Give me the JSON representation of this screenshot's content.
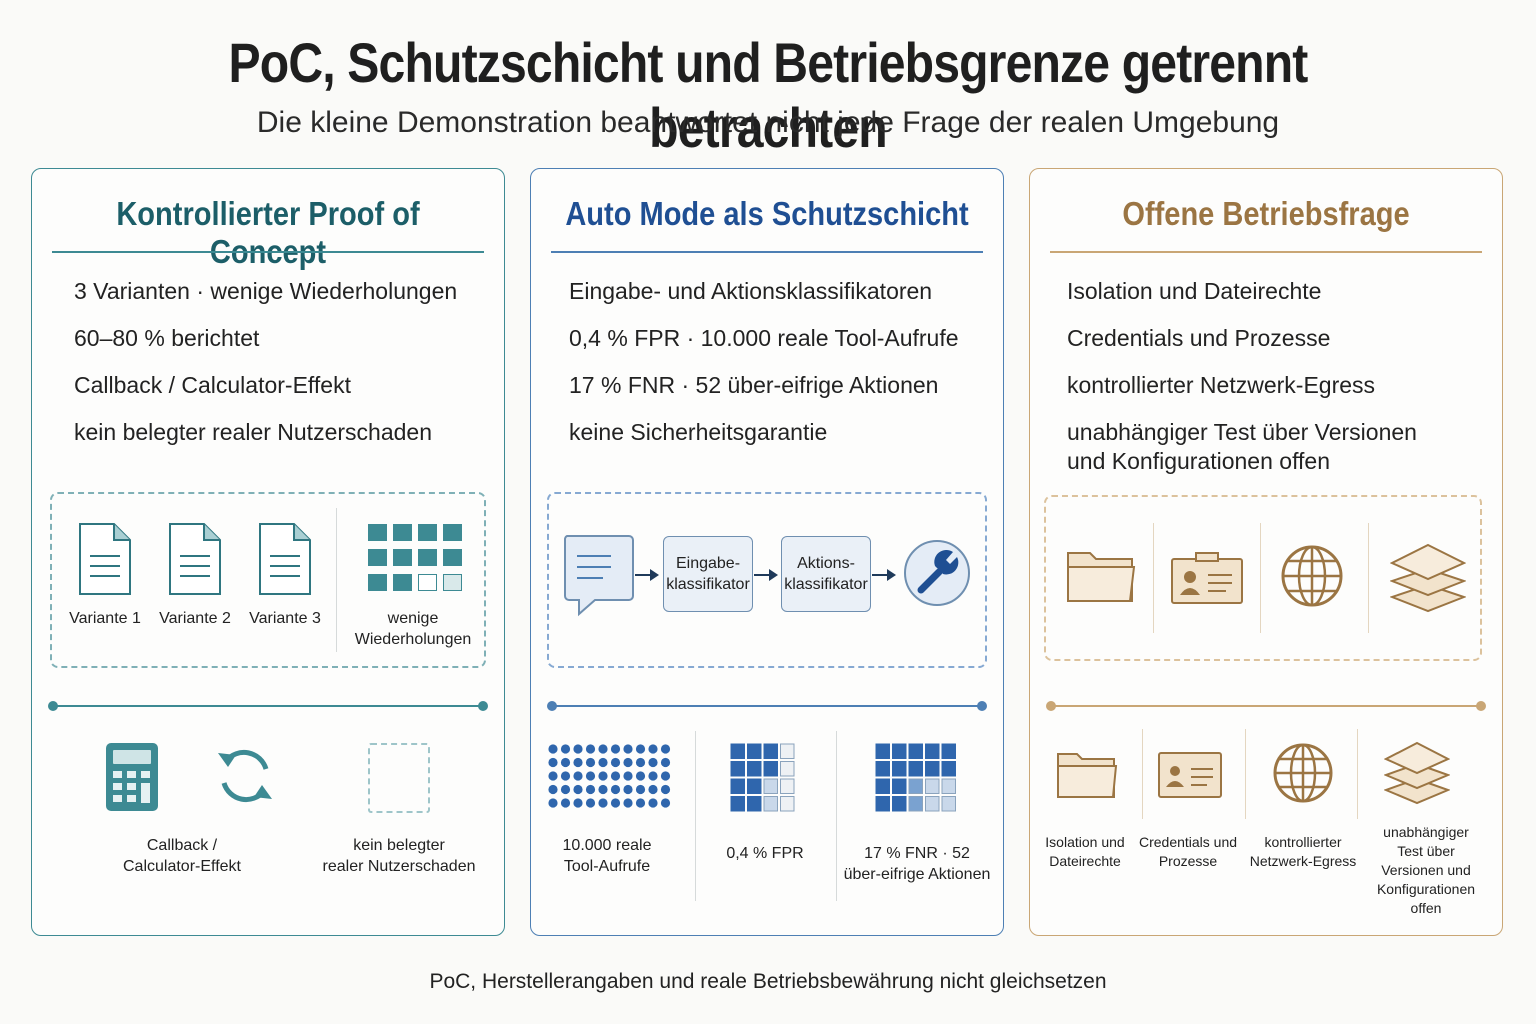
{
  "title": "PoC, Schutzschicht und Betriebsgrenze getrennt betrachten",
  "subtitle": "Die kleine Demonstration beantwortet nicht jede Frage der realen Umgebung",
  "footer": "PoC, Herstellerangaben und reale Betriebsbewährung nicht gleichsetzen",
  "colors": {
    "teal": "#3d8a93",
    "blue": "#4d7fb4",
    "gold": "#c9a675"
  },
  "panel1": {
    "title": "Kontrollierter Proof of Concept",
    "bullets": [
      "3 Varianten · wenige Wiederholungen",
      "60–80 % berichtet",
      "Callback / Calculator-Effekt",
      "kein belegter realer Nutzerschaden"
    ],
    "icons": {
      "variant1": "Variante 1",
      "variant2": "Variante 2",
      "variant3": "Variante 3",
      "repeats_line1": "wenige",
      "repeats_line2": "Wiederholungen"
    },
    "bottom": {
      "callback_line1": "Callback /",
      "callback_line2": "Calculator-Effekt",
      "harm_line1": "kein belegter",
      "harm_line2": "realer Nutzerschaden"
    }
  },
  "panel2": {
    "title": "Auto Mode als Schutzschicht",
    "bullets": [
      "Eingabe- und Aktionsklassifikatoren",
      "0,4 % FPR · 10.000 reale Tool-Aufrufe",
      "17 % FNR · 52 über-eifrige Aktionen",
      "keine Sicherheitsgarantie"
    ],
    "flow": {
      "input_line1": "Eingabe-",
      "input_line2": "klassifikator",
      "action_line1": "Aktions-",
      "action_line2": "klassifikator"
    },
    "bottom": {
      "calls_line1": "10.000 reale",
      "calls_line2": "Tool-Aufrufe",
      "fpr": "0,4 % FPR",
      "fnr_line1": "17 % FNR · 52",
      "fnr_line2": "über-eifrige Aktionen"
    }
  },
  "panel3": {
    "title": "Offene Betriebsfrage",
    "bullets": [
      "Isolation und Dateirechte",
      "Credentials und Prozesse",
      "kontrollierter Netzwerk-Egress",
      "unabhängiger Test über Versionen",
      "und Konfigurationen offen"
    ],
    "bottom": {
      "iso_line1": "Isolation und",
      "iso_line2": "Dateirechte",
      "cred_line1": "Credentials und",
      "cred_line2": "Prozesse",
      "net_line1": "kontrollierter",
      "net_line2": "Netzwerk-Egress",
      "test_line1": "unabhängiger",
      "test_line2": "Test über",
      "test_line3": "Versionen und",
      "test_line4": "Konfigurationen",
      "test_line5": "offen"
    }
  }
}
